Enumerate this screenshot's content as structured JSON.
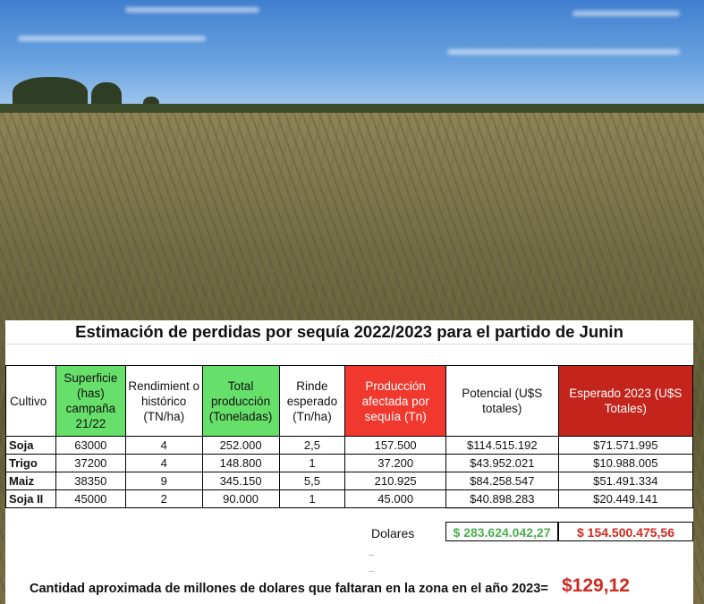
{
  "title": "Estimación de perdidas por sequía 2022/2023 para el partido de Junin",
  "colors": {
    "green_header": "#66e06a",
    "red_header": "#f0382e",
    "darkred_header": "#c3241b",
    "total_green": "#4caf50",
    "total_red": "#d0291f"
  },
  "headers": [
    "Cultivo",
    "Superficie (has) campaña 21/22",
    "Rendimient o histórico (TN/ha)",
    "Total producción (Toneladas)",
    "Rinde esperado (Tn/ha)",
    "Producción afectada por sequía (Tn)",
    "Potencial (U$S totales)",
    "Esperado 2023 (U$S Totales)"
  ],
  "rows": [
    [
      "Soja",
      "63000",
      "4",
      "252.000",
      "2,5",
      "157.500",
      "$114.515.192",
      "$71.571.995"
    ],
    [
      "Trigo",
      "37200",
      "4",
      "148.800",
      "1",
      "37.200",
      "$43.952.021",
      "$10.988.005"
    ],
    [
      "Maiz",
      "38350",
      "9",
      "345.150",
      "5,5",
      "210.925",
      "$84.258.547",
      "$51.491.334"
    ],
    [
      "Soja II",
      "45000",
      "2",
      "90.000",
      "1",
      "45.000",
      "$40.898.283",
      "$20.449.141"
    ]
  ],
  "totals": {
    "label": "Dolares",
    "potencial": "$ 283.624.042,27",
    "esperado": "$ 154.500.475,56"
  },
  "footer": {
    "text": "Cantidad aproximada de millones de dolares que faltaran en la zona en el año 2023=",
    "value": "$129,12"
  }
}
